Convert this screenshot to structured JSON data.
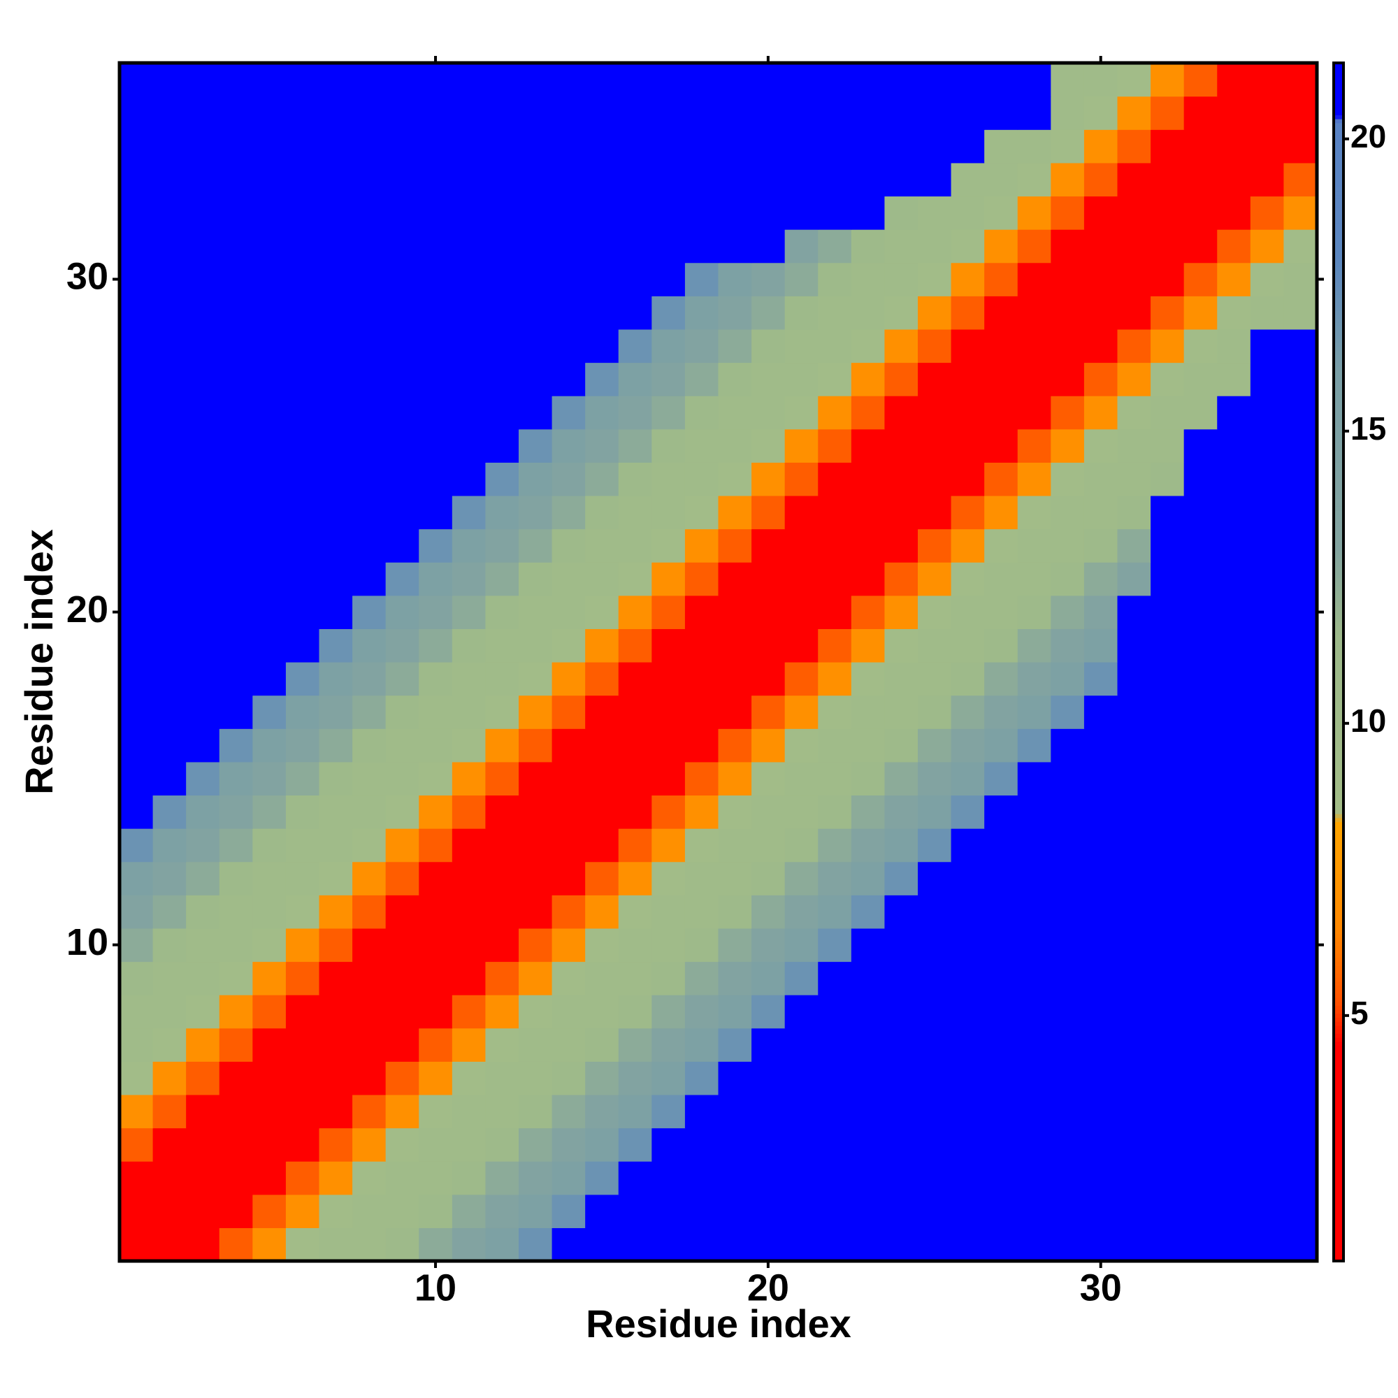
{
  "chart_data": {
    "type": "heatmap",
    "xlabel": "Residue index",
    "ylabel": "Residue index",
    "x": [
      1,
      2,
      3,
      4,
      5,
      6,
      7,
      8,
      9,
      10,
      11,
      12,
      13,
      14,
      15,
      16,
      17,
      18,
      19,
      20,
      21,
      22,
      23,
      24,
      25,
      26,
      27,
      28,
      29,
      30,
      31,
      32,
      33,
      34,
      35,
      36
    ],
    "y": [
      1,
      2,
      3,
      4,
      5,
      6,
      7,
      8,
      9,
      10,
      11,
      12,
      13,
      14,
      15,
      16,
      17,
      18,
      19,
      20,
      21,
      22,
      23,
      24,
      25,
      26,
      27,
      28,
      29,
      30,
      31,
      32,
      33,
      34,
      35,
      36
    ],
    "xlim": [
      0.5,
      36.5
    ],
    "ylim": [
      0.5,
      36.5
    ],
    "xticks": [
      10,
      20,
      30
    ],
    "yticks": [
      10,
      20,
      30
    ],
    "zlim": [
      0.8,
      21.3
    ],
    "zticks": [
      5,
      10,
      15,
      20
    ],
    "colorscale": [
      [
        0.8,
        "#ff0000"
      ],
      [
        4.5,
        "#ff0000"
      ],
      [
        5.2,
        "#ff5000"
      ],
      [
        6.5,
        "#ff8800"
      ],
      [
        8.3,
        "#ffa500"
      ],
      [
        8.5,
        "#a3bd88"
      ],
      [
        11.5,
        "#9db98a"
      ],
      [
        13,
        "#83a4a0"
      ],
      [
        16,
        "#7a9fa6"
      ],
      [
        18,
        "#5b86bf"
      ],
      [
        20.3,
        "#5a83c4"
      ],
      [
        20.4,
        "#0000ff"
      ],
      [
        21.3,
        "#0000ff"
      ]
    ],
    "z": [
      [
        0,
        3.8,
        4.3,
        5.5,
        7,
        9,
        10,
        10,
        11,
        12.5,
        13.5,
        15,
        17,
        21,
        21,
        21,
        21,
        21,
        21,
        21,
        21,
        21,
        21,
        21,
        21,
        21,
        21,
        21,
        21,
        21,
        21,
        21,
        21,
        21,
        21,
        21
      ],
      [
        3.8,
        0,
        3.8,
        4.3,
        5.5,
        7,
        9,
        10,
        10,
        11,
        12.5,
        13.5,
        15,
        17,
        21,
        21,
        21,
        21,
        21,
        21,
        21,
        21,
        21,
        21,
        21,
        21,
        21,
        21,
        21,
        21,
        21,
        21,
        21,
        21,
        21,
        21
      ],
      [
        4.3,
        3.8,
        0,
        3.8,
        4.3,
        5.5,
        7,
        9,
        10,
        10,
        11,
        12.5,
        13.5,
        15,
        17,
        21,
        21,
        21,
        21,
        21,
        21,
        21,
        21,
        21,
        21,
        21,
        21,
        21,
        21,
        21,
        21,
        21,
        21,
        21,
        21,
        21
      ],
      [
        5.5,
        4.3,
        3.8,
        0,
        3.8,
        4.3,
        5.5,
        7,
        9,
        10,
        10,
        11,
        12.5,
        13.5,
        15,
        17,
        21,
        21,
        21,
        21,
        21,
        21,
        21,
        21,
        21,
        21,
        21,
        21,
        21,
        21,
        21,
        21,
        21,
        21,
        21,
        21
      ],
      [
        7,
        5.5,
        4.3,
        3.8,
        0,
        3.8,
        4.3,
        5.5,
        7,
        9,
        10,
        10,
        11,
        12.5,
        13.5,
        15,
        17,
        21,
        21,
        21,
        21,
        21,
        21,
        21,
        21,
        21,
        21,
        21,
        21,
        21,
        21,
        21,
        21,
        21,
        21,
        21
      ],
      [
        9,
        7,
        5.5,
        4.3,
        3.8,
        0,
        3.8,
        4.3,
        5.5,
        7,
        9,
        10,
        10,
        11,
        12.5,
        13.5,
        15,
        17,
        21,
        21,
        21,
        21,
        21,
        21,
        21,
        21,
        21,
        21,
        21,
        21,
        21,
        21,
        21,
        21,
        21,
        21
      ],
      [
        10,
        9,
        7,
        5.5,
        4.3,
        3.8,
        0,
        3.8,
        4.3,
        5.5,
        7,
        9,
        10,
        10,
        11,
        12.5,
        13.5,
        15,
        17,
        21,
        21,
        21,
        21,
        21,
        21,
        21,
        21,
        21,
        21,
        21,
        21,
        21,
        21,
        21,
        21,
        21
      ],
      [
        10,
        10,
        9,
        7,
        5.5,
        4.3,
        3.8,
        0,
        3.8,
        4.3,
        5.5,
        7,
        9,
        10,
        10,
        11,
        12.5,
        13.5,
        15,
        17,
        21,
        21,
        21,
        21,
        21,
        21,
        21,
        21,
        21,
        21,
        21,
        21,
        21,
        21,
        21,
        21
      ],
      [
        11,
        10,
        10,
        9,
        7,
        5.5,
        4.3,
        3.8,
        0,
        3.8,
        4.3,
        5.5,
        7,
        9,
        10,
        10,
        11,
        12.5,
        13.5,
        15,
        17,
        21,
        21,
        21,
        21,
        21,
        21,
        21,
        21,
        21,
        21,
        21,
        21,
        21,
        21,
        21
      ],
      [
        12.5,
        11,
        10,
        10,
        9,
        7,
        5.5,
        4.3,
        3.8,
        0,
        3.8,
        4.3,
        5.5,
        7,
        9,
        10,
        10,
        11,
        12.5,
        13.5,
        15,
        17,
        21,
        21,
        21,
        21,
        21,
        21,
        21,
        21,
        21,
        21,
        21,
        21,
        21,
        21
      ],
      [
        13.5,
        12.5,
        11,
        10,
        10,
        9,
        7,
        5.5,
        4.3,
        3.8,
        0,
        3.8,
        4.3,
        5.5,
        7,
        9,
        10,
        10,
        11,
        12.5,
        13.5,
        15,
        17,
        21,
        21,
        21,
        21,
        21,
        21,
        21,
        21,
        21,
        21,
        21,
        21,
        21
      ],
      [
        15,
        13.5,
        12.5,
        11,
        10,
        10,
        9,
        7,
        5.5,
        4.3,
        3.8,
        0,
        3.8,
        4.3,
        5.5,
        7,
        9,
        10,
        10,
        11,
        12.5,
        13.5,
        15,
        17,
        21,
        21,
        21,
        21,
        21,
        21,
        21,
        21,
        21,
        21,
        21,
        21
      ],
      [
        17,
        15,
        13.5,
        12.5,
        11,
        10,
        10,
        9,
        7,
        5.5,
        4.3,
        3.8,
        0,
        3.8,
        4.3,
        5.5,
        7,
        9,
        10,
        10,
        11,
        12.5,
        13.5,
        15,
        17,
        21,
        21,
        21,
        21,
        21,
        21,
        21,
        21,
        21,
        21,
        21
      ],
      [
        21,
        17,
        15,
        13.5,
        12.5,
        11,
        10,
        10,
        9,
        7,
        5.5,
        4.3,
        3.8,
        0,
        3.8,
        4.3,
        5.5,
        7,
        9,
        10,
        10,
        11,
        12.5,
        13.5,
        15,
        17,
        21,
        21,
        21,
        21,
        21,
        21,
        21,
        21,
        21,
        21
      ],
      [
        21,
        21,
        17,
        15,
        13.5,
        12.5,
        11,
        10,
        10,
        9,
        7,
        5.5,
        4.3,
        3.8,
        0,
        3.8,
        4.3,
        5.5,
        7,
        9,
        10,
        10,
        11,
        12.5,
        13.5,
        15,
        17,
        21,
        21,
        21,
        21,
        21,
        21,
        21,
        21,
        21
      ],
      [
        21,
        21,
        21,
        17,
        15,
        13.5,
        12.5,
        11,
        10,
        10,
        9,
        7,
        5.5,
        4.3,
        3.8,
        0,
        3.8,
        4.3,
        5.5,
        7,
        9,
        10,
        10,
        11,
        12.5,
        13.5,
        15,
        17,
        21,
        21,
        21,
        21,
        21,
        21,
        21,
        21
      ],
      [
        21,
        21,
        21,
        21,
        17,
        15,
        13.5,
        12.5,
        11,
        10,
        10,
        9,
        7,
        5.5,
        4.3,
        3.8,
        0,
        3.8,
        4.3,
        5.5,
        7,
        9,
        10,
        10,
        11,
        12.5,
        13.5,
        15,
        17,
        21,
        21,
        21,
        21,
        21,
        21,
        21
      ],
      [
        21,
        21,
        21,
        21,
        21,
        17,
        15,
        13.5,
        12.5,
        11,
        10,
        10,
        9,
        7,
        5.5,
        4.3,
        3.8,
        0,
        3.8,
        4.3,
        5.5,
        7,
        9,
        10,
        10,
        11,
        12.5,
        13.5,
        15,
        17,
        21,
        21,
        21,
        21,
        21,
        21
      ],
      [
        21,
        21,
        21,
        21,
        21,
        21,
        17,
        15,
        13.5,
        12.5,
        11,
        10,
        10,
        9,
        7,
        5.5,
        4.3,
        3.8,
        0,
        3.8,
        4.3,
        5.5,
        7,
        9,
        10,
        10,
        11,
        12.5,
        13.5,
        15,
        21,
        21,
        21,
        21,
        21,
        21
      ],
      [
        21,
        21,
        21,
        21,
        21,
        21,
        21,
        17,
        15,
        13.5,
        12.5,
        11,
        10,
        10,
        9,
        7,
        5.5,
        4.3,
        3.8,
        0,
        3.8,
        4.3,
        5.5,
        7,
        9,
        10,
        10,
        11,
        12.5,
        13.5,
        21,
        21,
        21,
        21,
        21,
        21
      ],
      [
        21,
        21,
        21,
        21,
        21,
        21,
        21,
        21,
        17,
        15,
        13.5,
        12.5,
        11,
        10,
        10,
        9,
        7,
        5.5,
        4.3,
        3.8,
        0,
        3.8,
        4.3,
        5.5,
        7,
        9,
        10,
        10,
        11,
        12.5,
        13.5,
        21,
        21,
        21,
        21,
        21
      ],
      [
        21,
        21,
        21,
        21,
        21,
        21,
        21,
        21,
        21,
        17,
        15,
        13.5,
        12.5,
        11,
        10,
        10,
        9,
        7,
        5.5,
        4.3,
        3.8,
        0,
        3.8,
        4.3,
        5.5,
        7,
        9,
        10,
        10,
        11,
        12.5,
        21,
        21,
        21,
        21,
        21
      ],
      [
        21,
        21,
        21,
        21,
        21,
        21,
        21,
        21,
        21,
        21,
        17,
        15,
        13.5,
        12.5,
        11,
        10,
        10,
        9,
        7,
        5.5,
        4.3,
        3.8,
        0,
        3.8,
        4.3,
        5.5,
        7,
        9,
        10,
        10,
        11,
        21,
        21,
        21,
        21,
        21
      ],
      [
        21,
        21,
        21,
        21,
        21,
        21,
        21,
        21,
        21,
        21,
        21,
        17,
        15,
        13.5,
        12.5,
        11,
        10,
        10,
        9,
        7,
        5.5,
        4.3,
        3.8,
        0,
        3.8,
        4.3,
        5.5,
        7,
        9,
        10,
        10,
        11,
        21,
        21,
        21,
        21
      ],
      [
        21,
        21,
        21,
        21,
        21,
        21,
        21,
        21,
        21,
        21,
        21,
        21,
        17,
        15,
        13.5,
        12.5,
        11,
        10,
        10,
        9,
        7,
        5.5,
        4.3,
        3.8,
        0,
        3.8,
        4.3,
        5.5,
        7,
        9,
        10,
        10,
        21,
        21,
        21,
        21
      ],
      [
        21,
        21,
        21,
        21,
        21,
        21,
        21,
        21,
        21,
        21,
        21,
        21,
        21,
        17,
        15,
        13.5,
        12.5,
        11,
        10,
        10,
        9,
        7,
        5.5,
        4.3,
        3.8,
        0,
        3.8,
        4.3,
        5.5,
        7,
        9,
        10,
        10,
        21,
        21,
        21
      ],
      [
        21,
        21,
        21,
        21,
        21,
        21,
        21,
        21,
        21,
        21,
        21,
        21,
        21,
        21,
        17,
        15,
        13.5,
        12.5,
        11,
        10,
        10,
        9,
        7,
        5.5,
        4.3,
        3.8,
        0,
        3.8,
        4.3,
        5.5,
        7,
        9,
        10,
        10,
        21,
        21
      ],
      [
        21,
        21,
        21,
        21,
        21,
        21,
        21,
        21,
        21,
        21,
        21,
        21,
        21,
        21,
        21,
        17,
        15,
        13.5,
        12.5,
        11,
        10,
        10,
        9,
        7,
        5.5,
        4.3,
        3.8,
        0,
        3.8,
        4.3,
        5.5,
        7,
        9,
        10,
        21,
        21
      ],
      [
        21,
        21,
        21,
        21,
        21,
        21,
        21,
        21,
        21,
        21,
        21,
        21,
        21,
        21,
        21,
        21,
        17,
        15,
        13.5,
        12.5,
        11,
        10,
        10,
        9,
        7,
        5.5,
        4.3,
        3.8,
        0,
        3.8,
        4.3,
        5.5,
        7,
        9,
        10,
        10
      ],
      [
        21,
        21,
        21,
        21,
        21,
        21,
        21,
        21,
        21,
        21,
        21,
        21,
        21,
        21,
        21,
        21,
        21,
        17,
        15,
        13.5,
        12.5,
        11,
        10,
        10,
        9,
        7,
        5.5,
        4.3,
        3.8,
        0,
        3.8,
        4.3,
        5.5,
        7,
        9,
        10
      ],
      [
        21,
        21,
        21,
        21,
        21,
        21,
        21,
        21,
        21,
        21,
        21,
        21,
        21,
        21,
        21,
        21,
        21,
        21,
        21,
        21,
        13.5,
        12.5,
        11,
        10,
        10,
        9,
        7,
        5.5,
        4.3,
        3.8,
        0,
        3.8,
        4.3,
        5.5,
        7,
        9
      ],
      [
        21,
        21,
        21,
        21,
        21,
        21,
        21,
        21,
        21,
        21,
        21,
        21,
        21,
        21,
        21,
        21,
        21,
        21,
        21,
        21,
        21,
        21,
        21,
        11,
        10,
        10,
        9,
        7,
        5.5,
        4.3,
        3.8,
        0,
        3.8,
        4.3,
        5.5,
        7
      ],
      [
        21,
        21,
        21,
        21,
        21,
        21,
        21,
        21,
        21,
        21,
        21,
        21,
        21,
        21,
        21,
        21,
        21,
        21,
        21,
        21,
        21,
        21,
        21,
        21,
        21,
        10,
        10,
        9,
        7,
        5.5,
        4.3,
        3.8,
        0,
        3.8,
        4.3,
        5.5
      ],
      [
        21,
        21,
        21,
        21,
        21,
        21,
        21,
        21,
        21,
        21,
        21,
        21,
        21,
        21,
        21,
        21,
        21,
        21,
        21,
        21,
        21,
        21,
        21,
        21,
        21,
        21,
        10,
        10,
        9,
        7,
        5.5,
        4.3,
        3.8,
        0,
        3.8,
        4.3
      ],
      [
        21,
        21,
        21,
        21,
        21,
        21,
        21,
        21,
        21,
        21,
        21,
        21,
        21,
        21,
        21,
        21,
        21,
        21,
        21,
        21,
        21,
        21,
        21,
        21,
        21,
        21,
        21,
        21,
        10,
        9,
        7,
        5.5,
        4.3,
        3.8,
        0,
        3.8
      ],
      [
        21,
        21,
        21,
        21,
        21,
        21,
        21,
        21,
        21,
        21,
        21,
        21,
        21,
        21,
        21,
        21,
        21,
        21,
        21,
        21,
        21,
        21,
        21,
        21,
        21,
        21,
        21,
        21,
        10,
        10,
        9,
        7,
        5.5,
        4.3,
        3.8,
        0
      ]
    ]
  }
}
